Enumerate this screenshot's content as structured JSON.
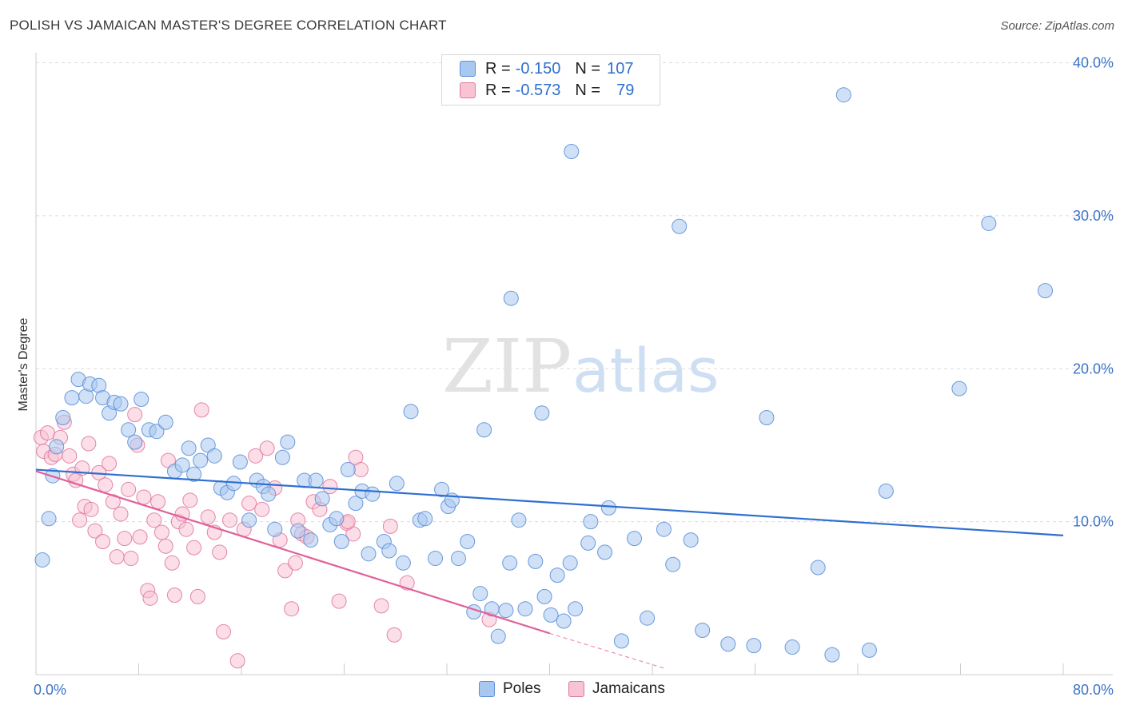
{
  "title": "POLISH VS JAMAICAN MASTER'S DEGREE CORRELATION CHART",
  "source": "Source: ZipAtlas.com",
  "watermark": {
    "zip": "ZIP",
    "atlas": "atlas"
  },
  "legend": {
    "r_label": "R =",
    "n_label": "N =",
    "rows": [
      {
        "name": "Poles",
        "r": "-0.150",
        "n": "107",
        "color": "#a9c8f0",
        "stroke": "#5b8fd8"
      },
      {
        "name": "Jamaicans",
        "r": "-0.573",
        "n": "79",
        "color": "#f8c3d3",
        "stroke": "#e07a9c"
      }
    ]
  },
  "chart_data": {
    "type": "scatter",
    "ylabel": "Master's Degree",
    "xlim": [
      0,
      80
    ],
    "ylim": [
      0,
      40
    ],
    "x_tick_labels": [
      "0.0%",
      "80.0%"
    ],
    "y_ticks": [
      10,
      20,
      30,
      40
    ],
    "y_tick_labels": [
      "10.0%",
      "20.0%",
      "30.0%",
      "40.0%"
    ],
    "grid": true,
    "series": [
      {
        "name": "Poles",
        "color": "#a9c8f0",
        "stroke": "#5b8fd8",
        "line_color": "#2f6fd0",
        "trend": {
          "x": [
            0,
            80
          ],
          "y": [
            13.4,
            9.1
          ]
        },
        "points": [
          [
            0.5,
            7.5
          ],
          [
            1,
            10.2
          ],
          [
            1.3,
            13
          ],
          [
            1.6,
            14.9
          ],
          [
            2.1,
            16.8
          ],
          [
            2.8,
            18.1
          ],
          [
            3.3,
            19.3
          ],
          [
            3.9,
            18.2
          ],
          [
            4.2,
            19
          ],
          [
            4.9,
            18.9
          ],
          [
            5.2,
            18.1
          ],
          [
            5.7,
            17.1
          ],
          [
            6.1,
            17.8
          ],
          [
            6.6,
            17.7
          ],
          [
            7.2,
            16
          ],
          [
            7.7,
            15.2
          ],
          [
            8.2,
            18
          ],
          [
            8.8,
            16
          ],
          [
            9.4,
            15.9
          ],
          [
            10.1,
            16.5
          ],
          [
            10.8,
            13.3
          ],
          [
            11.4,
            13.7
          ],
          [
            11.9,
            14.8
          ],
          [
            12.3,
            13.1
          ],
          [
            12.8,
            14
          ],
          [
            13.4,
            15
          ],
          [
            13.9,
            14.3
          ],
          [
            14.4,
            12.2
          ],
          [
            14.9,
            11.9
          ],
          [
            15.4,
            12.5
          ],
          [
            15.9,
            13.9
          ],
          [
            16.6,
            10.1
          ],
          [
            17.2,
            12.7
          ],
          [
            17.7,
            12.3
          ],
          [
            18.1,
            11.8
          ],
          [
            18.6,
            9.5
          ],
          [
            19.2,
            14.2
          ],
          [
            19.6,
            15.2
          ],
          [
            20.4,
            9.4
          ],
          [
            20.9,
            12.7
          ],
          [
            21.4,
            8.8
          ],
          [
            21.8,
            12.7
          ],
          [
            22.3,
            11.5
          ],
          [
            22.9,
            9.8
          ],
          [
            23.4,
            10.2
          ],
          [
            23.8,
            8.7
          ],
          [
            24.3,
            13.4
          ],
          [
            24.9,
            11.2
          ],
          [
            25.4,
            12
          ],
          [
            25.9,
            7.9
          ],
          [
            26.2,
            11.8
          ],
          [
            27.1,
            8.7
          ],
          [
            27.5,
            8.1
          ],
          [
            28.1,
            12.5
          ],
          [
            28.6,
            7.3
          ],
          [
            29.2,
            17.2
          ],
          [
            29.9,
            10.1
          ],
          [
            30.3,
            10.2
          ],
          [
            31.1,
            7.6
          ],
          [
            31.6,
            12.1
          ],
          [
            32.1,
            11
          ],
          [
            32.4,
            11.4
          ],
          [
            32.9,
            7.6
          ],
          [
            33.6,
            8.7
          ],
          [
            34.1,
            4.1
          ],
          [
            34.6,
            5.3
          ],
          [
            34.9,
            16
          ],
          [
            35.5,
            4.3
          ],
          [
            36,
            2.5
          ],
          [
            36.6,
            4.2
          ],
          [
            36.9,
            7.3
          ],
          [
            37.6,
            10.1
          ],
          [
            38.1,
            4.3
          ],
          [
            38.9,
            7.4
          ],
          [
            39.4,
            17.1
          ],
          [
            39.6,
            5.1
          ],
          [
            40.1,
            3.9
          ],
          [
            40.6,
            6.5
          ],
          [
            41.1,
            3.5
          ],
          [
            41.6,
            7.3
          ],
          [
            42,
            4.3
          ],
          [
            43,
            8.6
          ],
          [
            43.2,
            10
          ],
          [
            44.3,
            8
          ],
          [
            44.6,
            10.9
          ],
          [
            45.6,
            2.2
          ],
          [
            46.6,
            8.9
          ],
          [
            47.6,
            3.7
          ],
          [
            48.9,
            9.5
          ],
          [
            49.6,
            7.2
          ],
          [
            50.1,
            29.3
          ],
          [
            51,
            8.8
          ],
          [
            51.9,
            2.9
          ],
          [
            53.9,
            2
          ],
          [
            55.9,
            1.9
          ],
          [
            56.9,
            16.8
          ],
          [
            58.9,
            1.8
          ],
          [
            60.9,
            7
          ],
          [
            62,
            1.3
          ],
          [
            62.9,
            37.9
          ],
          [
            64.9,
            1.6
          ],
          [
            66.2,
            12
          ],
          [
            71.9,
            18.7
          ],
          [
            74.2,
            29.5
          ],
          [
            78.6,
            25.1
          ],
          [
            41.7,
            34.2
          ],
          [
            37,
            24.6
          ]
        ]
      },
      {
        "name": "Jamaicans",
        "color": "#f8c3d3",
        "stroke": "#e07a9c",
        "line_color": "#e0609a",
        "trend": {
          "x": [
            0,
            40
          ],
          "y": [
            13.3,
            2.7
          ]
        },
        "trend_dashed": {
          "x": [
            40,
            49
          ],
          "y": [
            2.7,
            0.4
          ]
        },
        "points": [
          [
            0.4,
            15.5
          ],
          [
            0.6,
            14.6
          ],
          [
            0.9,
            15.8
          ],
          [
            1.2,
            14.2
          ],
          [
            1.5,
            14.4
          ],
          [
            1.9,
            15.5
          ],
          [
            2.2,
            16.5
          ],
          [
            2.6,
            14.3
          ],
          [
            2.9,
            13.1
          ],
          [
            3.1,
            12.7
          ],
          [
            3.4,
            10.1
          ],
          [
            3.6,
            13.5
          ],
          [
            3.8,
            11
          ],
          [
            4.1,
            15.1
          ],
          [
            4.3,
            10.8
          ],
          [
            4.6,
            9.4
          ],
          [
            4.9,
            13.2
          ],
          [
            5.2,
            8.7
          ],
          [
            5.4,
            12.4
          ],
          [
            5.7,
            13.8
          ],
          [
            6,
            11.3
          ],
          [
            6.3,
            7.7
          ],
          [
            6.6,
            10.5
          ],
          [
            6.9,
            8.9
          ],
          [
            7.2,
            12.1
          ],
          [
            7.4,
            7.6
          ],
          [
            7.7,
            17
          ],
          [
            7.9,
            15
          ],
          [
            8.1,
            9
          ],
          [
            8.4,
            11.6
          ],
          [
            8.7,
            5.5
          ],
          [
            8.9,
            5
          ],
          [
            9.2,
            10.1
          ],
          [
            9.5,
            11.3
          ],
          [
            9.8,
            9.3
          ],
          [
            10.1,
            8.4
          ],
          [
            10.3,
            14
          ],
          [
            10.6,
            7.3
          ],
          [
            10.8,
            5.2
          ],
          [
            11.1,
            10
          ],
          [
            11.4,
            10.5
          ],
          [
            11.7,
            9.5
          ],
          [
            12,
            11.4
          ],
          [
            12.3,
            8.3
          ],
          [
            12.6,
            5.1
          ],
          [
            12.9,
            17.3
          ],
          [
            13.4,
            10.3
          ],
          [
            13.9,
            9.3
          ],
          [
            14.3,
            8
          ],
          [
            14.6,
            2.8
          ],
          [
            15.1,
            10.1
          ],
          [
            15.7,
            0.9
          ],
          [
            16.2,
            9.5
          ],
          [
            16.6,
            11.2
          ],
          [
            17.1,
            14.3
          ],
          [
            17.6,
            10.8
          ],
          [
            18,
            14.8
          ],
          [
            18.6,
            12.2
          ],
          [
            19,
            8.8
          ],
          [
            19.4,
            6.8
          ],
          [
            19.9,
            4.3
          ],
          [
            20.2,
            7.3
          ],
          [
            20.4,
            10.1
          ],
          [
            20.7,
            9.2
          ],
          [
            21.1,
            9
          ],
          [
            21.6,
            11.3
          ],
          [
            22.1,
            10.8
          ],
          [
            22.9,
            12.3
          ],
          [
            23.6,
            4.8
          ],
          [
            24.2,
            9.9
          ],
          [
            24.7,
            9.2
          ],
          [
            24.9,
            14.2
          ],
          [
            25.3,
            13.4
          ],
          [
            26.9,
            4.5
          ],
          [
            27.6,
            9.7
          ],
          [
            27.9,
            2.6
          ],
          [
            28.9,
            6
          ],
          [
            35.3,
            3.6
          ],
          [
            24.3,
            10
          ]
        ]
      }
    ]
  }
}
